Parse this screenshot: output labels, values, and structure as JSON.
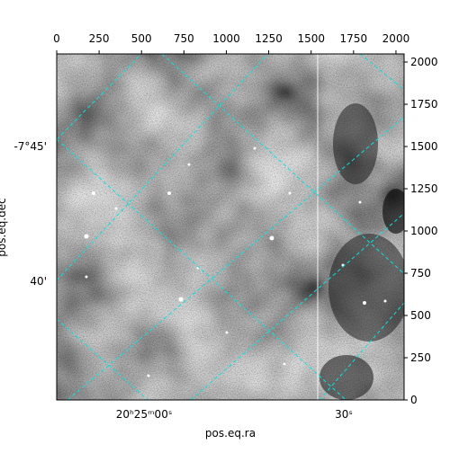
{
  "chart_data": {
    "type": "image",
    "xlabel": "pos.eq.ra",
    "ylabel": "pos.eq.dec",
    "xlim": [
      0,
      2048
    ],
    "ylim": [
      0,
      2048
    ],
    "xticks": [
      0,
      250,
      500,
      750,
      1000,
      1250,
      1500,
      1750,
      2000
    ],
    "yticks": [
      0,
      250,
      500,
      750,
      1000,
      1250,
      1500,
      1750,
      2000
    ],
    "ra_ticks": [
      "20ʰ25ᵐ00ˢ",
      "30ˢ"
    ],
    "dec_ticks": [
      "-7°45'",
      "40'"
    ],
    "grid_color": "#00e5e5"
  }
}
